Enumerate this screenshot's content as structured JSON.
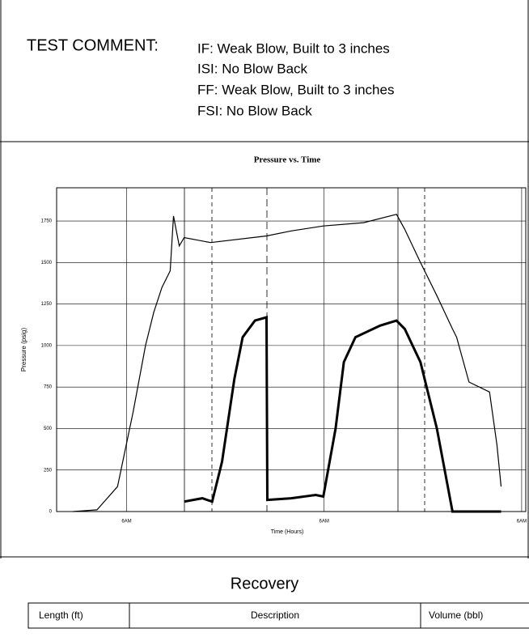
{
  "test_comment": {
    "label": "TEST COMMENT:",
    "lines": [
      "IF: Weak Blow, Built to 3 inches",
      "ISI: No Blow Back",
      "FF: Weak Blow, Built to 3 inches",
      "FSI: No Blow Back"
    ]
  },
  "chart_data": {
    "type": "line",
    "title": "Pressure vs. Time",
    "x_label": "Time (Hours)",
    "y_label": "Pressure (psig)",
    "xlim": [
      -8.5,
      48.5
    ],
    "xticks": [
      {
        "value": 0,
        "label": "6AM"
      },
      {
        "value": 24,
        "label": "6AM"
      },
      {
        "value": 48,
        "label": "6AM"
      }
    ],
    "ylim": [
      0,
      1950
    ],
    "yticks": [
      0,
      250,
      500,
      750,
      1000,
      1250,
      1500,
      1750
    ],
    "grid": true,
    "series": [
      {
        "color": "#000000",
        "x": [
          -6.5,
          -3.6,
          -1.1,
          0.8,
          2.3,
          3.3,
          4.3,
          5.3,
          5.7,
          6.4,
          7.0,
          10.2,
          17.0,
          20.0,
          23.9,
          28.8,
          32.8,
          33.8,
          35.7,
          37.7,
          39.6,
          40.1,
          41.6,
          44.1,
          45.0,
          45.5
        ],
        "values": [
          0,
          10,
          150,
          600,
          1000,
          1200,
          1350,
          1450,
          1780,
          1600,
          1650,
          1620,
          1660,
          1690,
          1720,
          1740,
          1790,
          1700,
          1500,
          1300,
          1100,
          1050,
          780,
          720,
          400,
          150
        ]
      },
      {
        "color": "#000000",
        "x": [
          7.0,
          9.2,
          10.4,
          11.6,
          13.1,
          14.1,
          15.6,
          17.0,
          17.1,
          20.0,
          23.0,
          23.9,
          25.4,
          26.4,
          27.8,
          30.8,
          32.8,
          33.8,
          35.7,
          37.7,
          39.6,
          45.5
        ],
        "values": [
          60,
          80,
          60,
          300,
          800,
          1050,
          1150,
          1170,
          70,
          80,
          100,
          90,
          500,
          900,
          1050,
          1120,
          1150,
          1100,
          900,
          500,
          0,
          0
        ]
      }
    ]
  },
  "recovery": {
    "title": "Recovery",
    "columns": [
      "Length (ft)",
      "Description",
      "Volume (bbl)"
    ]
  }
}
